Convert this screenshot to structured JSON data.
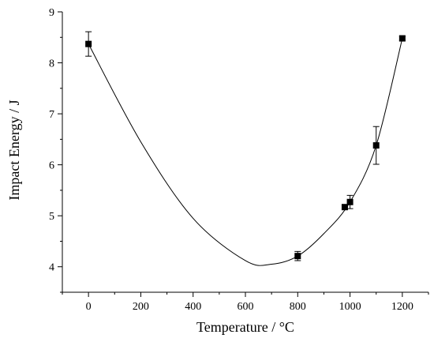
{
  "chart_data": {
    "type": "scatter",
    "xlabel": "Temperature / °C",
    "ylabel": "Impact Energy / J",
    "xlim": [
      -100,
      1300
    ],
    "ylim": [
      3.5,
      9
    ],
    "xticks": [
      0,
      200,
      400,
      600,
      800,
      1000,
      1200
    ],
    "yticks": [
      4,
      5,
      6,
      7,
      8,
      9
    ],
    "x_tick_labels": [
      "0",
      "200",
      "400",
      "600",
      "800",
      "1000",
      "1200"
    ],
    "y_tick_labels": [
      "4",
      "5",
      "6",
      "7",
      "8",
      "9"
    ],
    "grid": false,
    "legend": "none",
    "series": [
      {
        "marker": "square",
        "points": [
          {
            "x": 0,
            "y": 8.37,
            "err": 0.24
          },
          {
            "x": 800,
            "y": 4.21,
            "err": 0.09
          },
          {
            "x": 980,
            "y": 5.17,
            "err": 0.04
          },
          {
            "x": 1000,
            "y": 5.27,
            "err": 0.13
          },
          {
            "x": 1100,
            "y": 6.38,
            "err": 0.37
          },
          {
            "x": 1200,
            "y": 8.48,
            "err": 0.04
          }
        ]
      }
    ],
    "fit_curve": {
      "style": "smooth",
      "points": [
        {
          "x": 0,
          "y": 8.37
        },
        {
          "x": 200,
          "y": 6.45
        },
        {
          "x": 400,
          "y": 4.95
        },
        {
          "x": 600,
          "y": 4.12
        },
        {
          "x": 700,
          "y": 4.05
        },
        {
          "x": 800,
          "y": 4.21
        },
        {
          "x": 900,
          "y": 4.65
        },
        {
          "x": 1000,
          "y": 5.27
        },
        {
          "x": 1100,
          "y": 6.38
        },
        {
          "x": 1200,
          "y": 8.48
        }
      ]
    }
  }
}
